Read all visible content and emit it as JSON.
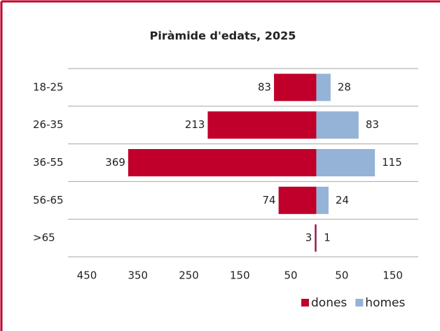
{
  "chart_data": {
    "type": "pyramid",
    "title": "Piràmide d'edats, 2025",
    "categories": [
      "18-25",
      "26-35",
      "36-55",
      "56-65",
      ">65"
    ],
    "series": [
      {
        "name": "dones",
        "color": "#c0002a",
        "values": [
          -83,
          -213,
          -369,
          -74,
          -3
        ],
        "value_labels": [
          "83",
          "213",
          "369",
          "74",
          "3"
        ]
      },
      {
        "name": "homes",
        "color": "#95b3d7",
        "values": [
          28,
          83,
          115,
          24,
          1
        ]
      }
    ],
    "xlim": [
      -450,
      200
    ],
    "xticks": [
      {
        "value": -450,
        "label": "450"
      },
      {
        "value": -350,
        "label": "350"
      },
      {
        "value": -250,
        "label": "250"
      },
      {
        "value": -150,
        "label": "150"
      },
      {
        "value": -50,
        "label": "50"
      },
      50,
      150
    ],
    "legend": "bottom-right"
  }
}
